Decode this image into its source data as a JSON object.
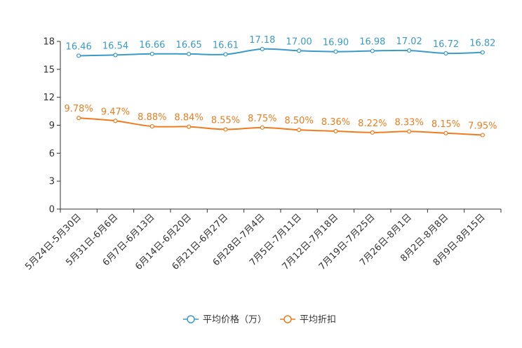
{
  "chart_data": {
    "type": "line",
    "title": "",
    "xlabel": "",
    "ylabel": "",
    "ylim": [
      0,
      18
    ],
    "yticks": [
      0,
      3,
      6,
      9,
      12,
      15,
      18
    ],
    "categories": [
      "5月24日-5月30日",
      "5月31日-6月6日",
      "6月7日-6月13日",
      "6月14日-6月20日",
      "6月21日-6月27日",
      "6月28日-7月4日",
      "7月5日-7月11日",
      "7月12日-7月18日",
      "7月19日-7月25日",
      "7月26日-8月1日",
      "8月2日-8月8日",
      "8月9日-8月15日"
    ],
    "series": [
      {
        "name": "平均价格（万）",
        "color": "#3a9bc8",
        "values": [
          16.46,
          16.54,
          16.66,
          16.65,
          16.61,
          17.18,
          17.0,
          16.9,
          16.98,
          17.02,
          16.72,
          16.82
        ],
        "labels": [
          "16.46",
          "16.54",
          "16.66",
          "16.65",
          "16.61",
          "17.18",
          "17.00",
          "16.90",
          "16.98",
          "17.02",
          "16.72",
          "16.82"
        ]
      },
      {
        "name": "平均折扣",
        "color": "#f07c1e",
        "values": [
          9.78,
          9.47,
          8.88,
          8.84,
          8.55,
          8.75,
          8.5,
          8.36,
          8.22,
          8.33,
          8.15,
          7.95
        ],
        "labels": [
          "9.78%",
          "9.47%",
          "8.88%",
          "8.84%",
          "8.55%",
          "8.75%",
          "8.50%",
          "8.36%",
          "8.22%",
          "8.33%",
          "8.15%",
          "7.95%"
        ]
      }
    ],
    "legend": "bottom-center"
  }
}
